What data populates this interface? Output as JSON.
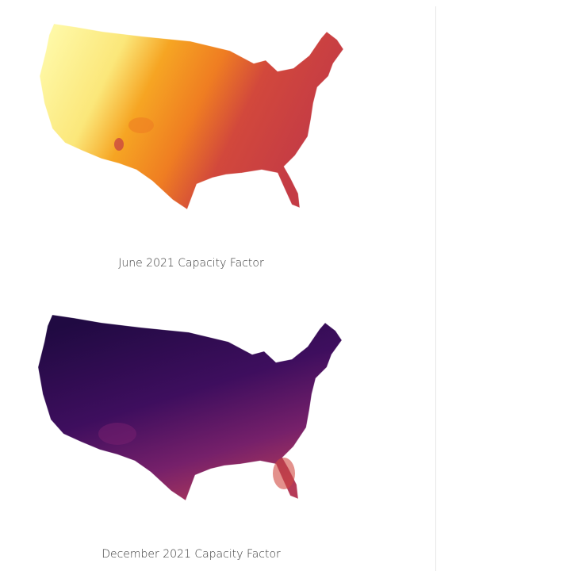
{
  "figures": [
    {
      "caption": "June 2021 Capacity Factor"
    },
    {
      "caption": "December 2021 Capacity Factor"
    }
  ]
}
